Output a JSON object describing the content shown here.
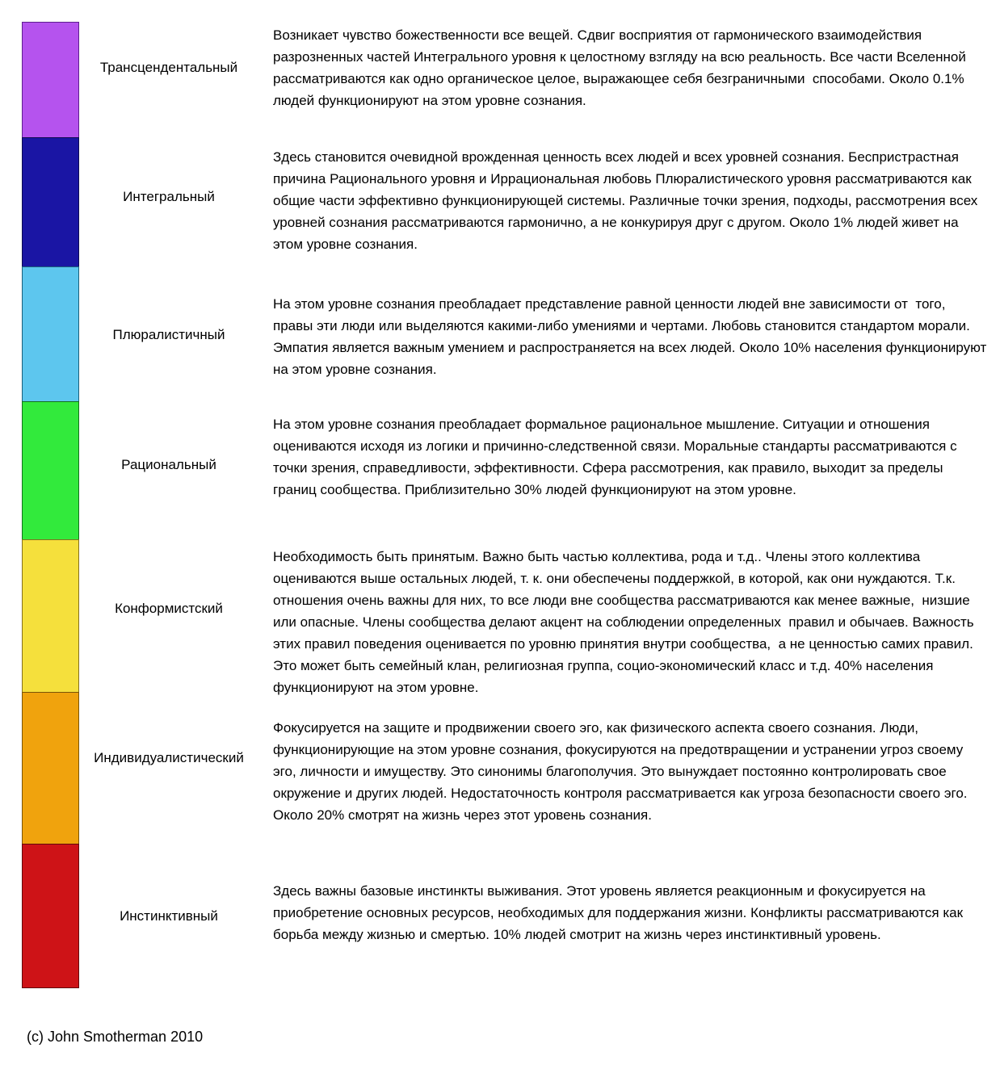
{
  "diagram": {
    "levels": [
      {
        "name": "Трансцендентальный",
        "color": "#B553EE",
        "border": "#5E1E8F",
        "description": "Возникает чувство божественности все вещей. Сдвиг восприятия от гармонического взаимодействия разрозненных частей Интегрального уровня к целостному взгляду на всю реальность. Все части Вселенной рассматриваются как одно органическое целое, выражающее себя безграничными  способами. Около 0.1%  людей функционируют на этом уровне сознания."
      },
      {
        "name": "Интегральный",
        "color": "#1A15A4",
        "border": "#0C0A52",
        "description": "Здесь становится очевидной врожденная ценность всех людей и всех уровней сознания. Беспристрастная причина Рационального уровня и Иррациональная любовь Плюралистического уровня рассматриваются как общие части эффективно функционирующей системы. Различные точки зрения, подходы, рассмотрения всех уровней сознания рассматриваются гармонично, а не конкурируя друг с другом. Около 1% людей живет на этом уровне сознания."
      },
      {
        "name": "Плюралистичный",
        "color": "#5DC6EE",
        "border": "#1B5F7A",
        "description": "На этом уровне сознания преобладает представление равной ценности людей вне зависимости от  того, правы эти люди или выделяются какими-либо умениями и чертами. Любовь становится стандартом морали. Эмпатия является важным умением и распространяется на всех людей. Около 10% населения функционируют на этом уровне сознания."
      },
      {
        "name": "Рациональный",
        "color": "#32EA3C",
        "border": "#13701C",
        "description": "На этом уровне сознания преобладает формальное рациональное мышление. Ситуации и отношения оцениваются исходя из логики и причинно-следственной связи. Моральные стандарты рассматриваются с точки зрения, справедливости, эффективности. Сфера рассмотрения, как правило, выходит за пределы  границ сообщества. Приблизительно 30% людей функционируют на этом уровне."
      },
      {
        "name": "Конформистский",
        "color": "#F5E03C",
        "border": "#84701E",
        "description": "Необходимость быть принятым. Важно быть частью коллектива, рода и т.д.. Члены этого коллектива оцениваются выше остальных людей, т. к. они обеспечены поддержкой, в которой, как они нуждаются. Т.к. отношения очень важны для них, то все люди вне сообщества рассматриваются как менее важные,  низшие или опасные. Члены сообщества делают акцент на соблюдении определенных  правил и обычаев. Важность этих правил поведения оценивается по уровню принятия внутри сообщества,  а не ценностью самих правил. Это может быть семейный клан, религиозная группа, социо-экономический класс и т.д. 40% населения функционируют на этом уровне."
      },
      {
        "name": "Индивидуалистический",
        "color": "#F0A30D",
        "border": "#7A5407",
        "description": "Фокусируется на защите и продвижении своего эго, как физического аспекта своего сознания. Люди, функционирующие на этом уровне сознания, фокусируются на предотвращении и устранении угроз своему эго, личности и имуществу. Это синонимы благополучия. Это вынуждает постоянно контролировать свое окружение и других людей. Недостаточность контроля рассматривается как угроза безопасности своего эго. Около 20% смотрят на жизнь через этот уровень сознания."
      },
      {
        "name": "Инстинктивный",
        "color": "#CE1317",
        "border": "#63090B",
        "description": "Здесь важны базовые инстинкты выживания. Этот уровень является реакционным и фокусируется на приобретение основных ресурсов, необходимых для поддержания жизни. Конфликты рассматриваются как борьба между жизнью и смертью. 10% людей смотрит на жизнь через инстинктивный уровень."
      }
    ],
    "footer": {
      "copyright": "(c) John Smotherman 2010"
    }
  }
}
